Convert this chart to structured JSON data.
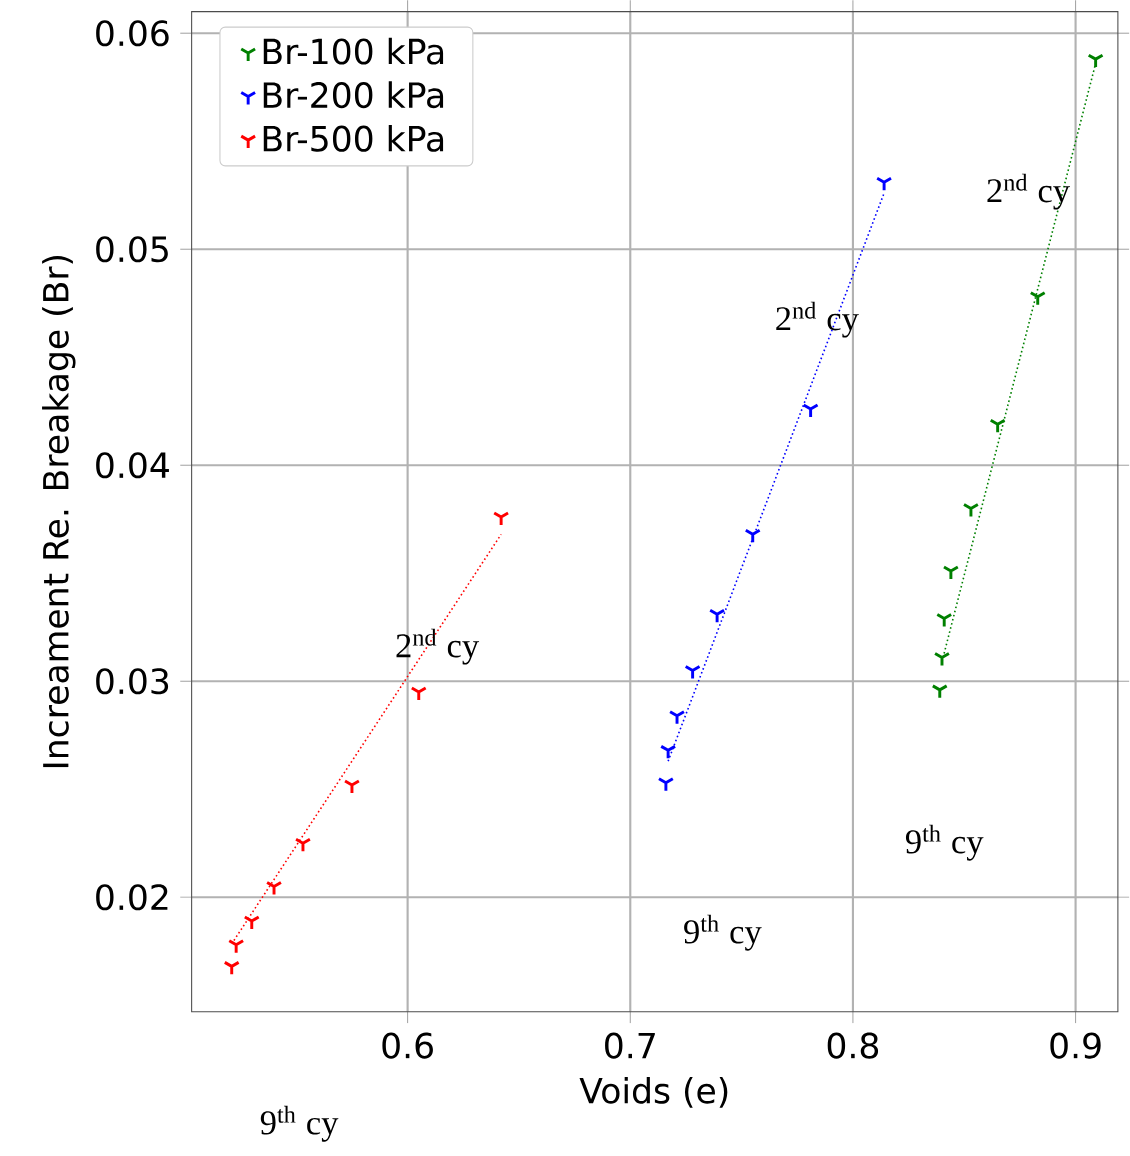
{
  "chart_data": {
    "type": "scatter",
    "xlabel": "Voids (e)",
    "ylabel": "Increament Re. Breakage (Br)",
    "xlim": [
      0.503,
      0.919
    ],
    "ylim": [
      0.0147,
      0.061
    ],
    "xticks": [
      0.6,
      0.7,
      0.8,
      0.9
    ],
    "yticks": [
      0.02,
      0.03,
      0.04,
      0.05,
      0.06
    ],
    "grid": true,
    "legend": "top left",
    "marker": "cross",
    "series": [
      {
        "name": "Br-100 kPa",
        "color": "#008000",
        "x": [
          0.839,
          0.84,
          0.841,
          0.844,
          0.853,
          0.865,
          0.883,
          0.909
        ],
        "values": [
          0.0296,
          0.0311,
          0.0329,
          0.0351,
          0.038,
          0.0419,
          0.0478,
          0.0588
        ]
      },
      {
        "name": "Br-200 kPa",
        "color": "#0000ff",
        "x": [
          0.716,
          0.717,
          0.721,
          0.728,
          0.739,
          0.755,
          0.781,
          0.814
        ],
        "values": [
          0.0253,
          0.0268,
          0.0284,
          0.0305,
          0.0331,
          0.0368,
          0.0426,
          0.0531
        ]
      },
      {
        "name": "Br-500 kPa",
        "color": "#ff0000",
        "x": [
          0.521,
          0.523,
          0.53,
          0.54,
          0.553,
          0.575,
          0.605,
          0.642
        ],
        "values": [
          0.0168,
          0.0178,
          0.0189,
          0.0205,
          0.0225,
          0.0252,
          0.0295,
          0.0376
        ]
      },
      {
        "type": "line",
        "color": "#008000",
        "line_style": "dotted",
        "marker": "none",
        "x": [
          0.84,
          0.909
        ],
        "values": [
          0.0309,
          0.0586
        ]
      },
      {
        "type": "line",
        "color": "#0000ff",
        "line_style": "dotted",
        "marker": "none",
        "x": [
          0.717,
          0.814
        ],
        "values": [
          0.0263,
          0.0526
        ]
      },
      {
        "type": "line",
        "color": "#ff0000",
        "line_style": "dotted",
        "marker": "none",
        "x": [
          0.522,
          0.642
        ],
        "values": [
          0.018,
          0.0368
        ]
      }
    ],
    "annotations": [
      "2$^{nd}$ cy",
      "2$^{nd}$ cy",
      "2$^{nd}$ cy",
      "9$^{th}$ cy",
      "9$^{th}$ cy",
      "9$^{th}$ cy"
    ]
  }
}
